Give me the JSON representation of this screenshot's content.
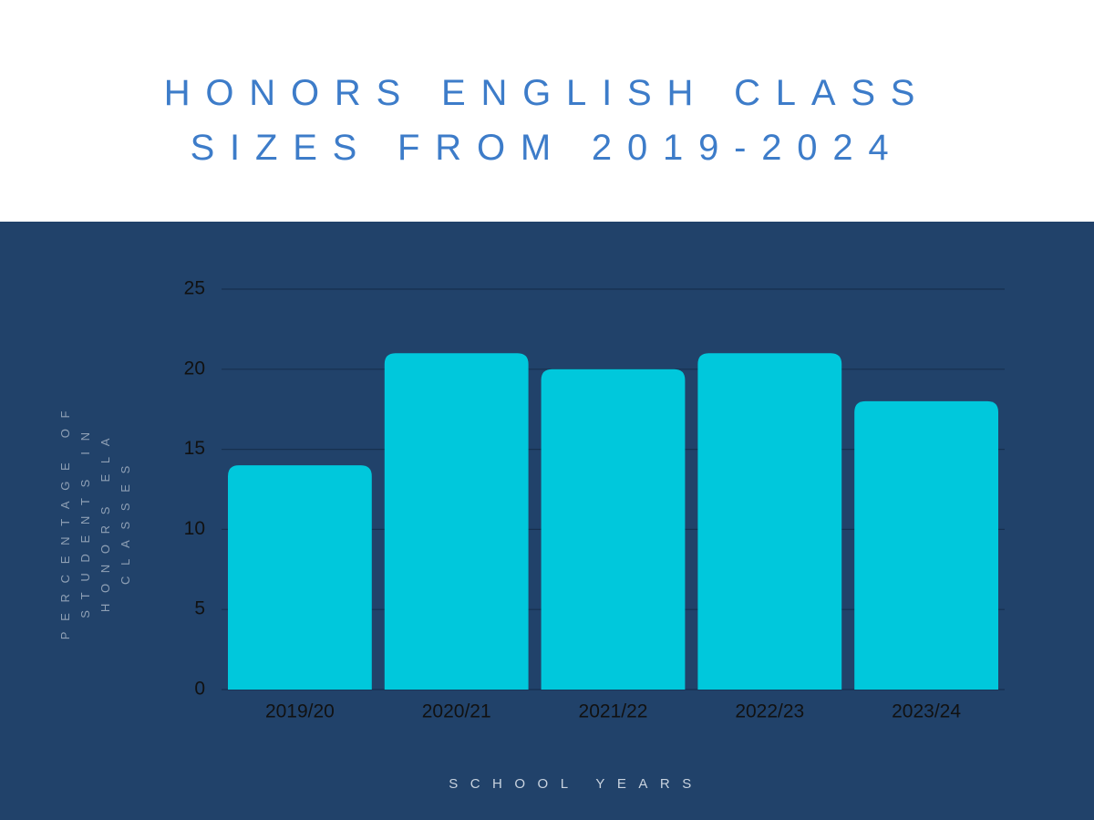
{
  "chart_data": {
    "type": "bar",
    "title": "HONORS ENGLISH CLASS SIZES FROM 2019-2024",
    "x_label": "SCHOOL YEARS",
    "y_label": "PERCENTAGE OF STUDENTS IN HONORS ELA CLASSES",
    "categories": [
      "2019/20",
      "2020/21",
      "2021/22",
      "2022/23",
      "2023/24"
    ],
    "values": [
      14,
      21,
      20,
      21,
      18
    ],
    "color": "#00c8dc",
    "ylim": [
      0,
      25
    ],
    "yticks": [
      0,
      5,
      10,
      15,
      20,
      25
    ],
    "grid": true
  }
}
